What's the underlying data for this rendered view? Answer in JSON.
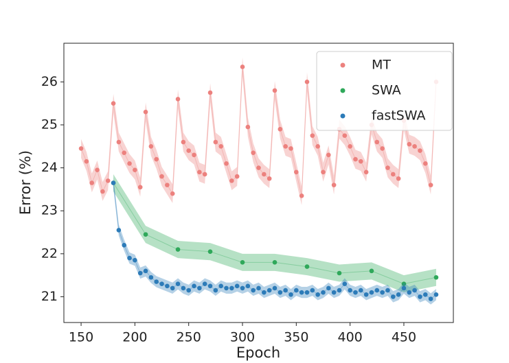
{
  "chart_data": {
    "type": "scatter",
    "xlabel": "Epoch",
    "ylabel": "Error (%)",
    "xlim": [
      134,
      496
    ],
    "ylim": [
      20.4,
      26.9
    ],
    "xticks": [
      150,
      200,
      250,
      300,
      350,
      400,
      450
    ],
    "yticks": [
      21,
      22,
      23,
      24,
      25,
      26
    ],
    "legend": "upper right",
    "series": [
      {
        "name": "MT",
        "color": "#ec817e",
        "error": 0.22,
        "x": [
          150,
          155,
          160,
          165,
          170,
          175,
          180,
          185,
          190,
          195,
          200,
          205,
          210,
          215,
          220,
          225,
          230,
          235,
          240,
          245,
          250,
          255,
          260,
          265,
          270,
          275,
          280,
          285,
          290,
          295,
          300,
          305,
          310,
          315,
          320,
          325,
          330,
          335,
          340,
          345,
          350,
          355,
          360,
          365,
          370,
          375,
          380,
          385,
          390,
          395,
          400,
          405,
          410,
          415,
          420,
          425,
          430,
          435,
          440,
          445,
          450,
          455,
          460,
          465,
          470,
          475,
          480
        ],
        "values": [
          24.45,
          24.15,
          23.65,
          23.95,
          23.45,
          23.7,
          25.5,
          24.6,
          24.35,
          24.1,
          23.95,
          23.55,
          25.3,
          24.5,
          24.2,
          23.8,
          23.6,
          23.4,
          25.6,
          24.6,
          24.4,
          24.3,
          23.9,
          23.85,
          25.75,
          24.6,
          24.5,
          24.1,
          23.7,
          23.8,
          26.35,
          24.95,
          24.35,
          24.0,
          23.85,
          23.75,
          25.8,
          24.9,
          24.5,
          24.45,
          23.9,
          23.35,
          26.0,
          24.75,
          24.5,
          23.9,
          24.3,
          23.6,
          24.9,
          24.75,
          24.5,
          24.2,
          24.15,
          23.9,
          25.0,
          24.6,
          24.45,
          24.0,
          23.85,
          23.75,
          25.1,
          24.55,
          24.5,
          24.4,
          24.1,
          23.6,
          26.0
        ]
      },
      {
        "name": "SWA",
        "color": "#2fa85a",
        "error": 0.2,
        "x": [
          180,
          210,
          240,
          270,
          300,
          330,
          360,
          390,
          420,
          450,
          480
        ],
        "values": [
          23.65,
          22.45,
          22.1,
          22.05,
          21.8,
          21.8,
          21.7,
          21.55,
          21.6,
          21.3,
          21.45
        ]
      },
      {
        "name": "fastSWA",
        "color": "#2c7bb8",
        "error": 0.13,
        "x": [
          180,
          185,
          190,
          195,
          200,
          205,
          210,
          215,
          220,
          225,
          230,
          235,
          240,
          245,
          250,
          255,
          260,
          265,
          270,
          275,
          280,
          285,
          290,
          295,
          300,
          305,
          310,
          315,
          320,
          325,
          330,
          335,
          340,
          345,
          350,
          355,
          360,
          365,
          370,
          375,
          380,
          385,
          390,
          395,
          400,
          405,
          410,
          415,
          420,
          425,
          430,
          435,
          440,
          445,
          450,
          455,
          460,
          465,
          470,
          475,
          480
        ],
        "values": [
          23.65,
          22.55,
          22.2,
          21.9,
          21.85,
          21.55,
          21.6,
          21.45,
          21.35,
          21.3,
          21.25,
          21.2,
          21.3,
          21.2,
          21.15,
          21.25,
          21.2,
          21.3,
          21.25,
          21.15,
          21.25,
          21.2,
          21.2,
          21.25,
          21.2,
          21.25,
          21.15,
          21.2,
          21.1,
          21.15,
          21.2,
          21.1,
          21.15,
          21.05,
          21.15,
          21.1,
          21.1,
          21.15,
          21.05,
          21.1,
          21.2,
          21.1,
          21.15,
          21.3,
          21.15,
          21.1,
          21.15,
          21.05,
          21.1,
          21.15,
          21.1,
          21.15,
          21.0,
          21.05,
          21.2,
          21.1,
          21.15,
          21.0,
          21.05,
          20.95,
          21.05
        ]
      }
    ]
  }
}
